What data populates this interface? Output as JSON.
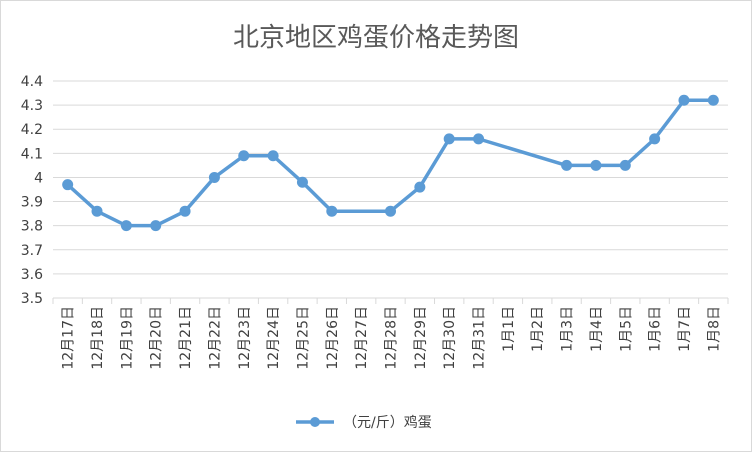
{
  "chart_data": {
    "type": "line",
    "title": "北京地区鸡蛋价格走势图",
    "categories": [
      "12月17日",
      "12月18日",
      "12月19日",
      "12月20日",
      "12月21日",
      "12月22日",
      "12月23日",
      "12月24日",
      "12月25日",
      "12月26日",
      "12月27日",
      "12月28日",
      "12月29日",
      "12月30日",
      "12月31日",
      "1月1日",
      "1月2日",
      "1月3日",
      "1月4日",
      "1月5日",
      "1月6日",
      "1月7日",
      "1月8日"
    ],
    "series": [
      {
        "name": "（元/斤）鸡蛋",
        "values": [
          3.97,
          3.86,
          3.8,
          3.8,
          3.86,
          4.0,
          4.09,
          4.09,
          3.98,
          3.86,
          null,
          3.86,
          3.96,
          4.16,
          4.16,
          null,
          null,
          4.05,
          4.05,
          4.05,
          4.16,
          4.32,
          4.32
        ]
      }
    ],
    "ylim": [
      3.5,
      4.4
    ],
    "yticks": [
      "3.5",
      "3.6",
      "3.7",
      "3.8",
      "3.9",
      "4",
      "4.1",
      "4.2",
      "4.3",
      "4.4"
    ],
    "grid": true,
    "legend_position": "bottom",
    "colors": {
      "series": "#5b9bd5",
      "grid": "#d9d9d9",
      "text": "#595959"
    }
  }
}
